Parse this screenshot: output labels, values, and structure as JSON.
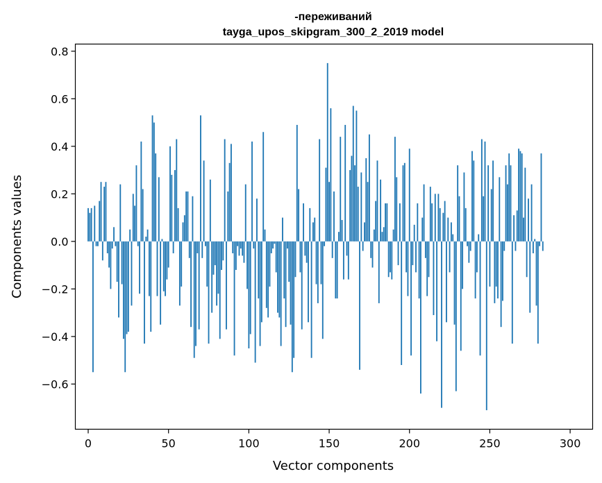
{
  "chart_data": {
    "type": "bar",
    "title_line1": "-переживаний",
    "title_line2": "tayga_upos_skipgram_300_2_2019 model",
    "xlabel": "Vector components",
    "ylabel": "Components values",
    "xlim": [
      -8,
      314
    ],
    "ylim": [
      -0.79,
      0.83
    ],
    "xticks": [
      0,
      50,
      100,
      150,
      200,
      250,
      300
    ],
    "yticks": [
      -0.6,
      -0.4,
      -0.2,
      0.0,
      0.2,
      0.4,
      0.6,
      0.8
    ],
    "xtick_labels": [
      "0",
      "50",
      "100",
      "150",
      "200",
      "250",
      "300"
    ],
    "ytick_labels": [
      "−0.6",
      "−0.4",
      "−0.2",
      "0.0",
      "0.2",
      "0.4",
      "0.6",
      "0.8"
    ],
    "bar_color": "#1f77b4",
    "values": [
      0.14,
      0.12,
      0.14,
      -0.55,
      0.15,
      -0.02,
      -0.02,
      0.17,
      0.25,
      -0.08,
      0.23,
      0.25,
      -0.05,
      -0.11,
      -0.2,
      -0.03,
      0.06,
      -0.02,
      -0.17,
      -0.32,
      0.24,
      -0.18,
      -0.41,
      -0.55,
      -0.39,
      -0.38,
      0.05,
      -0.27,
      0.2,
      0.15,
      0.32,
      -0.02,
      -0.22,
      0.42,
      0.22,
      -0.43,
      0.02,
      0.05,
      -0.23,
      -0.38,
      0.53,
      0.5,
      0.37,
      -0.23,
      0.27,
      -0.35,
      0.01,
      -0.21,
      -0.23,
      -0.16,
      -0.11,
      0.4,
      0.28,
      -0.05,
      0.3,
      0.43,
      0.14,
      -0.27,
      -0.19,
      0.08,
      0.11,
      0.21,
      0.21,
      -0.07,
      -0.36,
      0.19,
      -0.49,
      -0.44,
      -0.05,
      -0.37,
      0.53,
      -0.07,
      0.34,
      -0.02,
      -0.19,
      -0.43,
      0.26,
      -0.3,
      -0.14,
      -0.1,
      -0.27,
      -0.22,
      -0.41,
      -0.12,
      -0.08,
      0.43,
      -0.37,
      0.21,
      0.33,
      0.41,
      -0.05,
      -0.48,
      -0.12,
      -0.02,
      -0.06,
      -0.03,
      -0.06,
      -0.09,
      0.24,
      -0.2,
      -0.45,
      -0.39,
      0.42,
      -0.03,
      -0.51,
      0.18,
      -0.24,
      -0.44,
      -0.34,
      0.46,
      0.05,
      -0.28,
      -0.32,
      -0.19,
      -0.05,
      -0.03,
      -0.01,
      -0.13,
      -0.3,
      -0.32,
      -0.44,
      0.1,
      -0.24,
      -0.36,
      -0.03,
      -0.17,
      -0.35,
      -0.55,
      -0.49,
      -0.15,
      0.49,
      0.22,
      -0.13,
      -0.37,
      0.16,
      -0.06,
      -0.09,
      -0.34,
      0.14,
      -0.49,
      0.08,
      0.1,
      -0.18,
      -0.26,
      0.43,
      -0.18,
      -0.41,
      -0.02,
      0.31,
      0.75,
      0.25,
      0.56,
      -0.07,
      0.21,
      -0.24,
      -0.24,
      0.04,
      0.44,
      0.09,
      -0.16,
      0.49,
      -0.06,
      -0.16,
      0.3,
      0.36,
      0.57,
      0.32,
      0.55,
      0.23,
      -0.54,
      0.29,
      -0.04,
      0.08,
      0.35,
      0.25,
      0.45,
      -0.07,
      -0.11,
      0.05,
      0.17,
      0.34,
      -0.26,
      0.26,
      0.04,
      0.06,
      0.16,
      0.16,
      -0.15,
      -0.13,
      -0.16,
      0.05,
      0.44,
      0.27,
      -0.1,
      0.16,
      -0.52,
      0.32,
      0.33,
      -0.13,
      -0.23,
      0.39,
      -0.48,
      -0.1,
      0.07,
      -0.13,
      0.16,
      -0.24,
      -0.64,
      0.1,
      0.24,
      -0.07,
      -0.23,
      -0.15,
      0.23,
      0.16,
      -0.31,
      0.2,
      -0.42,
      0.2,
      0.14,
      -0.7,
      0.12,
      0.17,
      -0.34,
      0.1,
      -0.13,
      0.08,
      0.03,
      -0.35,
      -0.63,
      0.32,
      0.19,
      -0.46,
      -0.2,
      0.29,
      0.14,
      -0.02,
      -0.09,
      -0.04,
      0.38,
      0.34,
      -0.24,
      -0.13,
      0.03,
      -0.48,
      0.43,
      0.19,
      0.42,
      -0.71,
      0.32,
      -0.19,
      0.22,
      0.34,
      -0.26,
      -0.19,
      -0.24,
      0.27,
      -0.36,
      -0.25,
      -0.04,
      0.32,
      0.24,
      0.37,
      0.32,
      -0.43,
      0.11,
      -0.04,
      0.13,
      0.39,
      0.38,
      0.37,
      0.1,
      0.31,
      -0.15,
      0.18,
      -0.3,
      0.24,
      -0.05,
      0.01,
      -0.27,
      -0.43,
      -0.02,
      0.37,
      -0.04
    ]
  }
}
